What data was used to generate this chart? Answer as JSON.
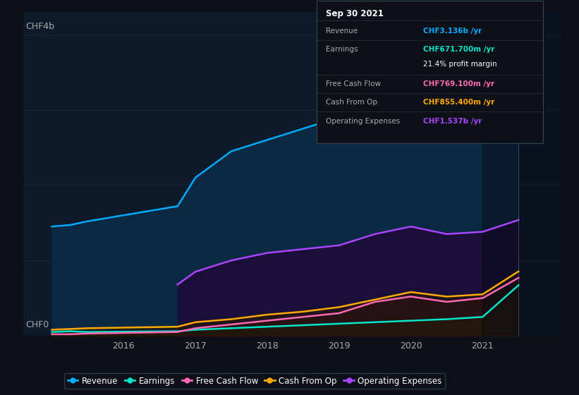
{
  "background_color": "#0d1117",
  "plot_bg_color": "#0d1a2a",
  "ylabel_top": "CHF4b",
  "ylabel_bottom": "CHF0",
  "x_ticks": [
    2016,
    2017,
    2018,
    2019,
    2020,
    2021
  ],
  "line_colors": [
    "#00aaff",
    "#00e5cc",
    "#ff69b4",
    "#ffaa00",
    "#aa44ff"
  ],
  "revenue": [
    1.45,
    1.47,
    1.52,
    1.72,
    2.1,
    2.45,
    2.6,
    2.75,
    2.9,
    2.95,
    2.8,
    2.75,
    2.8,
    3.136
  ],
  "earnings": [
    0.05,
    0.06,
    0.05,
    0.06,
    0.08,
    0.1,
    0.12,
    0.14,
    0.16,
    0.18,
    0.2,
    0.22,
    0.25,
    0.6717
  ],
  "free_cash_flow": [
    0.02,
    0.02,
    0.03,
    0.05,
    0.1,
    0.15,
    0.2,
    0.25,
    0.3,
    0.45,
    0.52,
    0.45,
    0.5,
    0.7691
  ],
  "cash_from_op": [
    0.08,
    0.09,
    0.1,
    0.12,
    0.18,
    0.22,
    0.28,
    0.32,
    0.38,
    0.48,
    0.58,
    0.52,
    0.55,
    0.8554
  ],
  "operating_expenses": [
    0.0,
    0.0,
    0.0,
    0.68,
    0.85,
    1.0,
    1.1,
    1.15,
    1.2,
    1.35,
    1.45,
    1.35,
    1.38,
    1.537
  ],
  "x_vals": [
    2015.0,
    2015.25,
    2015.5,
    2016.75,
    2017.0,
    2017.5,
    2018.0,
    2018.5,
    2019.0,
    2019.5,
    2020.0,
    2020.5,
    2021.0,
    2021.5
  ],
  "tooltip_bg": "#0d1117",
  "tooltip_border": "#334455",
  "tooltip_title": "Sep 30 2021",
  "tooltip_rows": [
    {
      "label": "Revenue",
      "value": "CHF3.136b /yr",
      "vcolor": "#00aaff",
      "sep_above": false
    },
    {
      "label": "Earnings",
      "value": "CHF671.700m /yr",
      "vcolor": "#00e5cc",
      "sep_above": true
    },
    {
      "label": "",
      "value": "21.4% profit margin",
      "vcolor": "#ffffff",
      "sep_above": false
    },
    {
      "label": "Free Cash Flow",
      "value": "CHF769.100m /yr",
      "vcolor": "#ff69b4",
      "sep_above": true
    },
    {
      "label": "Cash From Op",
      "value": "CHF855.400m /yr",
      "vcolor": "#ffaa00",
      "sep_above": true
    },
    {
      "label": "Operating Expenses",
      "value": "CHF1.537b /yr",
      "vcolor": "#aa44ff",
      "sep_above": true
    }
  ],
  "legend_items": [
    {
      "label": "Revenue",
      "color": "#00aaff"
    },
    {
      "label": "Earnings",
      "color": "#00e5cc"
    },
    {
      "label": "Free Cash Flow",
      "color": "#ff69b4"
    },
    {
      "label": "Cash From Op",
      "color": "#ffaa00"
    },
    {
      "label": "Operating Expenses",
      "color": "#aa44ff"
    }
  ]
}
